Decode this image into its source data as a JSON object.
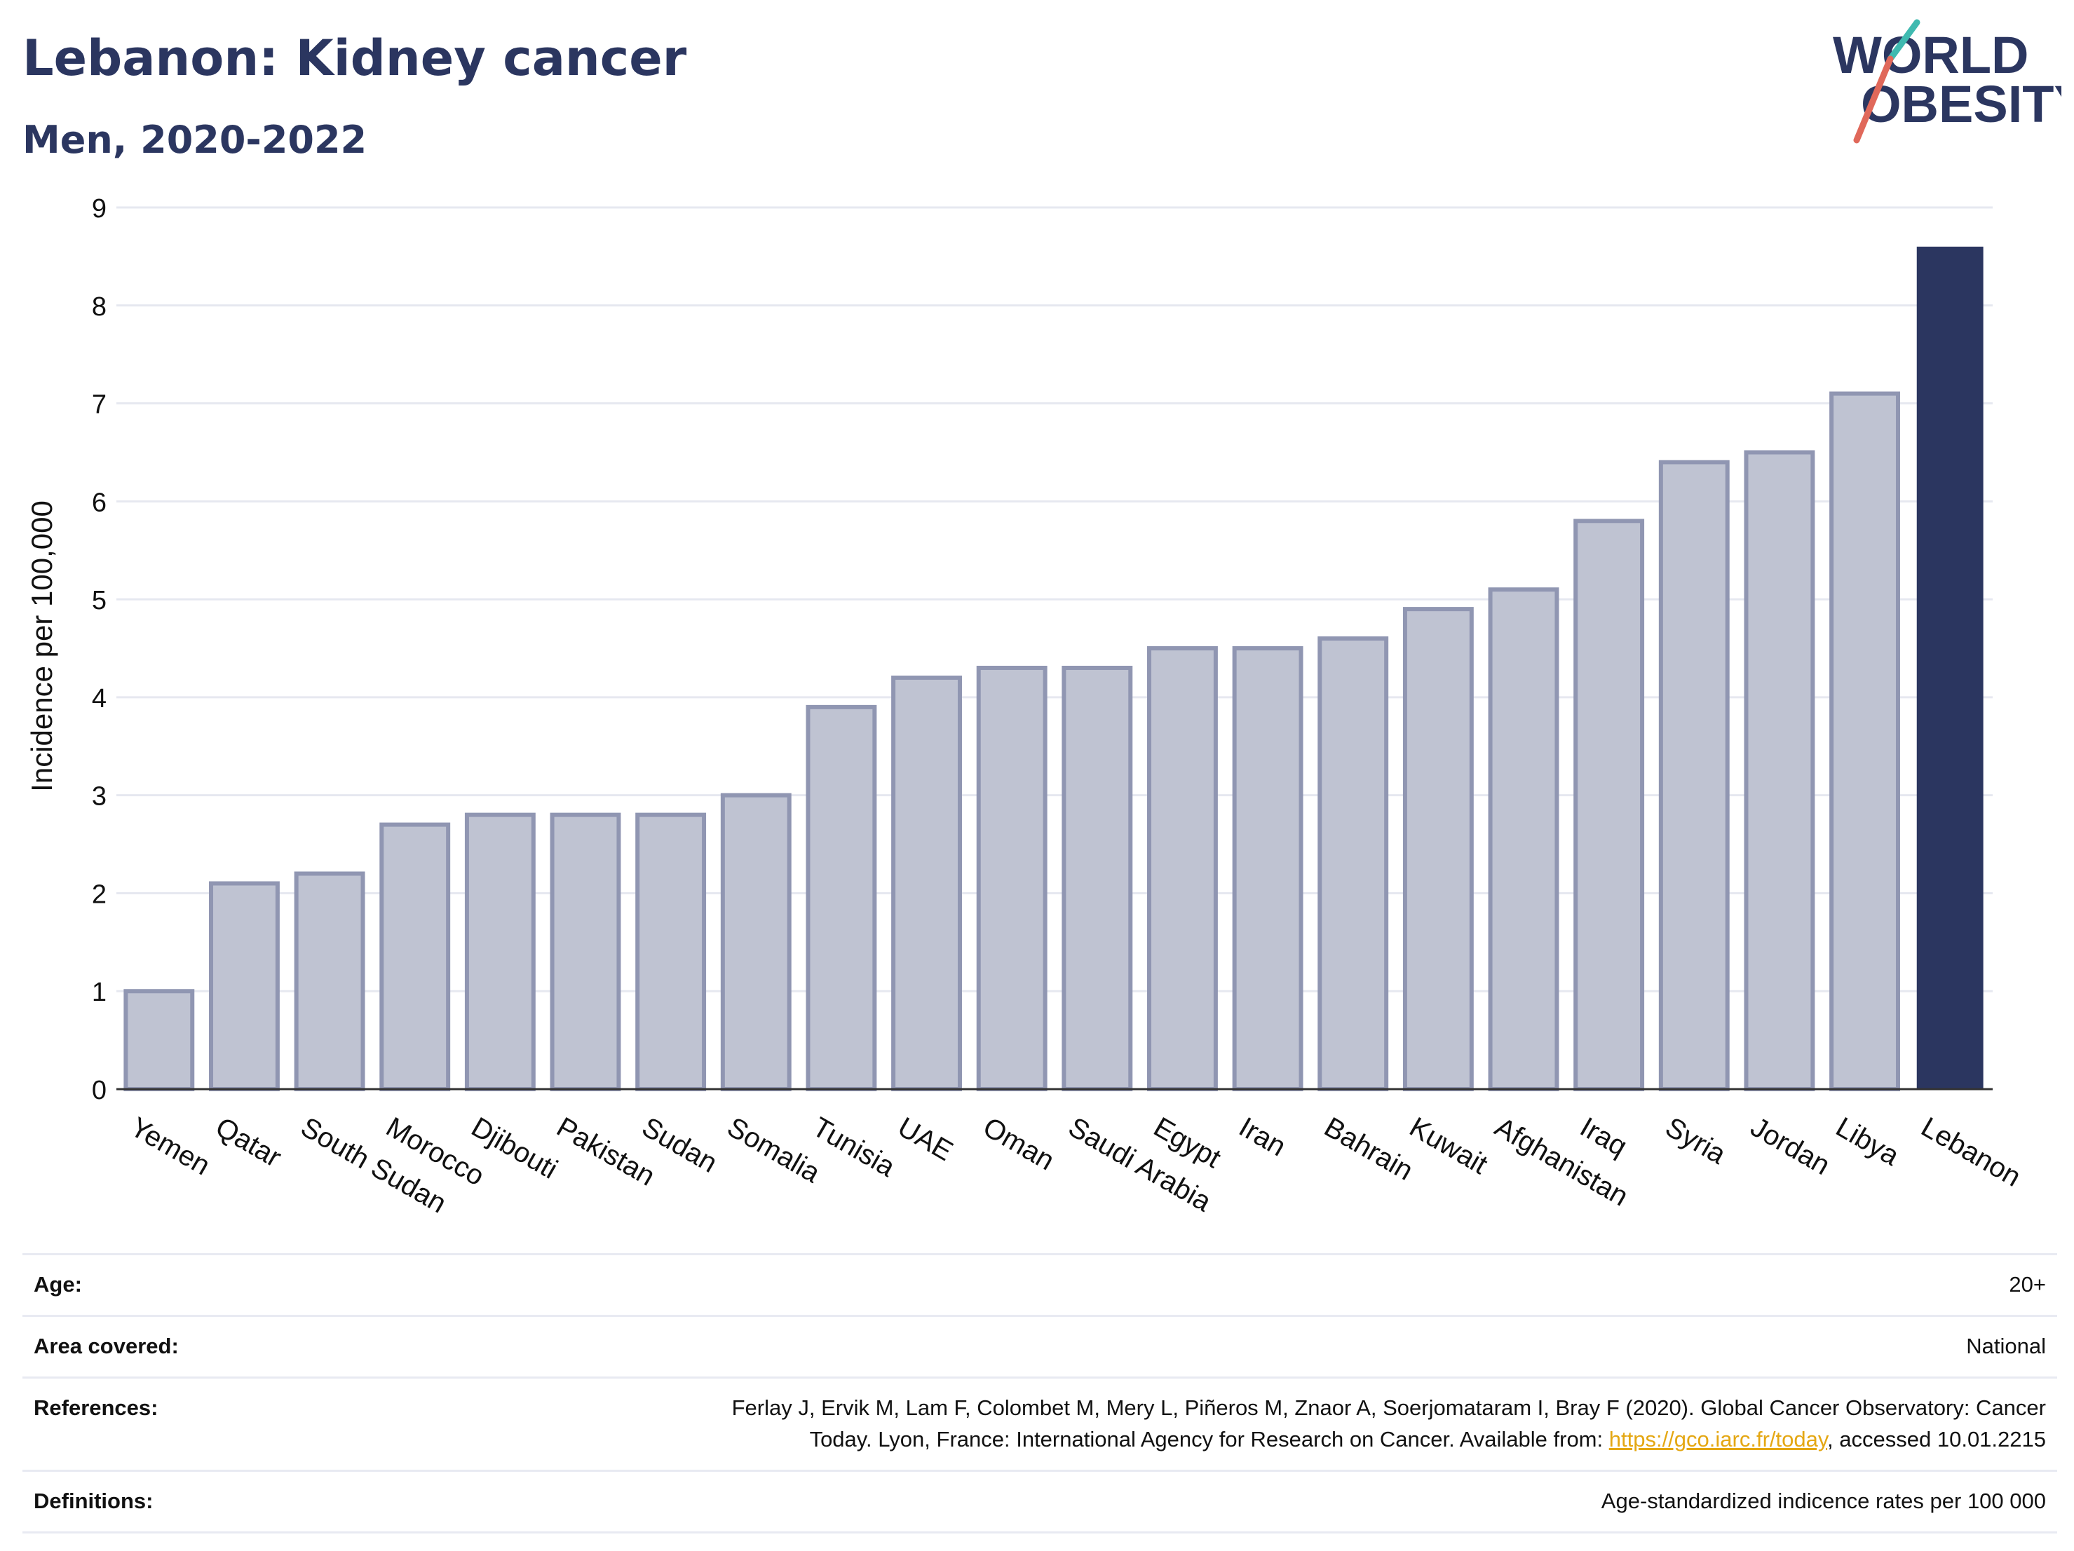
{
  "header": {
    "title": "Lebanon: Kidney cancer",
    "subtitle": "Men, 2020-2022"
  },
  "logo": {
    "line1": "WORLD",
    "line2": "OBESITY"
  },
  "chart_data": {
    "type": "bar",
    "title": "Lebanon: Kidney cancer",
    "subtitle": "Men, 2020-2022",
    "ylabel": "Incidence per 100,000",
    "xlabel": "",
    "ylim": [
      0,
      9
    ],
    "yticks": [
      0,
      1,
      2,
      3,
      4,
      5,
      6,
      7,
      8,
      9
    ],
    "grid": true,
    "categories": [
      "Yemen",
      "Qatar",
      "South Sudan",
      "Morocco",
      "Djibouti",
      "Pakistan",
      "Sudan",
      "Somalia",
      "Tunisia",
      "UAE",
      "Oman",
      "Saudi Arabia",
      "Egypt",
      "Iran",
      "Bahrain",
      "Kuwait",
      "Afghanistan",
      "Iraq",
      "Syria",
      "Jordan",
      "Libya",
      "Lebanon"
    ],
    "values": [
      1.0,
      2.1,
      2.2,
      2.7,
      2.8,
      2.8,
      2.8,
      3.0,
      3.9,
      4.2,
      4.3,
      4.3,
      4.5,
      4.5,
      4.6,
      4.9,
      5.1,
      5.8,
      6.4,
      6.5,
      7.1,
      8.6
    ],
    "highlight": "Lebanon",
    "colors": {
      "bar": "#bfc3d2",
      "bar_border": "#9096b2",
      "highlight": "#2b3660",
      "grid": "#e6e8f0",
      "axis": "#333333"
    }
  },
  "meta": {
    "age_label": "Age:",
    "age_value": "20+",
    "area_label": "Area covered:",
    "area_value": "National",
    "references_label": "References:",
    "references_line1": "Ferlay J, Ervik M, Lam F, Colombet M, Mery L, Piñeros M, Znaor A, Soerjomataram I, Bray F (2020). Global Cancer Observatory: Cancer",
    "references_line2_prefix": "Today. Lyon, France: International Agency for Research on Cancer. Available from: ",
    "references_link": "https://gco.iarc.fr/today",
    "references_line2_suffix": ", accessed 10.01.2215",
    "definitions_label": "Definitions:",
    "definitions_value": "Age-standardized indicence rates per 100 000"
  }
}
